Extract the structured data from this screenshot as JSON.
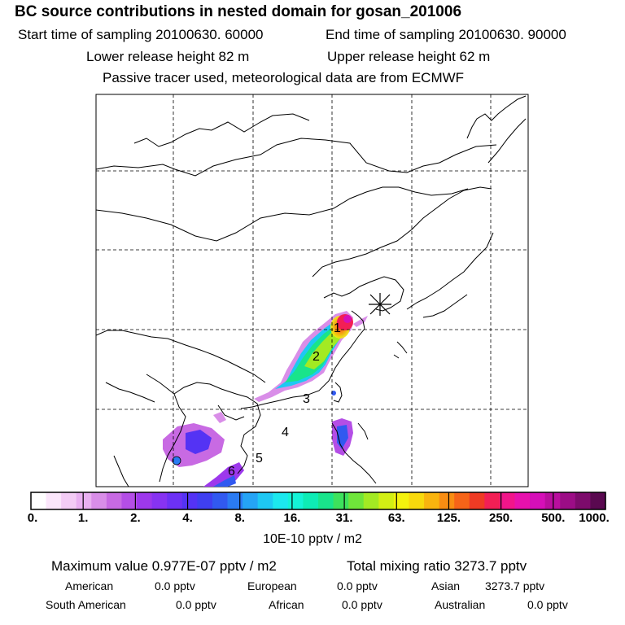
{
  "header": {
    "title": "BC  source contributions in nested domain for gosan_201006",
    "start_time": "Start time of sampling 20100630. 60000",
    "end_time": "End time of sampling 20100630. 90000",
    "lower_height": "Lower release height   82 m",
    "upper_height": "Upper release height   62 m",
    "passive_note": "Passive tracer used, meteorological data are from ECMWF"
  },
  "chart_data": {
    "type": "heatmap",
    "title": "BC  source contributions in nested domain for gosan_201006",
    "colorbar_label": "10E-10 pptv / m2",
    "colorbar_ticks": [
      "0.",
      "1.",
      "2.",
      "4.",
      "8.",
      "16.",
      "31.",
      "63.",
      "125.",
      "250.",
      "500.",
      "1000."
    ],
    "colorbar_colors": [
      "#ffffff",
      "#fbe6fb",
      "#f3ccf5",
      "#e9b0f1",
      "#d98ee8",
      "#c86ae3",
      "#b44ee6",
      "#9d38ec",
      "#8733f2",
      "#6d31f5",
      "#5433f4",
      "#3f3ff0",
      "#3159f0",
      "#2a7bf3",
      "#25a4f5",
      "#1ec8f3",
      "#1ce8ee",
      "#14f3d7",
      "#0eecb5",
      "#19e48b",
      "#3de25c",
      "#6fe53a",
      "#a3ea23",
      "#d2ef14",
      "#f4f20d",
      "#f8d90c",
      "#f9b40e",
      "#f98d12",
      "#f66418",
      "#ef3b24",
      "#f21f55",
      "#f1158a",
      "#e711ad",
      "#d50fb8",
      "#b90e9e",
      "#9c0d86",
      "#7d0b6c",
      "#5a0950"
    ],
    "plume_labels": [
      "1",
      "2",
      "3",
      "4",
      "5",
      "6"
    ],
    "receptor": "Gosan"
  },
  "stats": {
    "max_value": "Maximum value  0.977E-07 pptv / m2",
    "total_mixing": "Total mixing ratio     3273.7 pptv",
    "sources": [
      {
        "name": "American",
        "value": "0.0 pptv"
      },
      {
        "name": "European",
        "value": "0.0 pptv"
      },
      {
        "name": "Asian",
        "value": "3273.7 pptv"
      },
      {
        "name": "South American",
        "value": "0.0 pptv"
      },
      {
        "name": "African",
        "value": "0.0 pptv"
      },
      {
        "name": "Australian",
        "value": "0.0 pptv"
      }
    ]
  }
}
